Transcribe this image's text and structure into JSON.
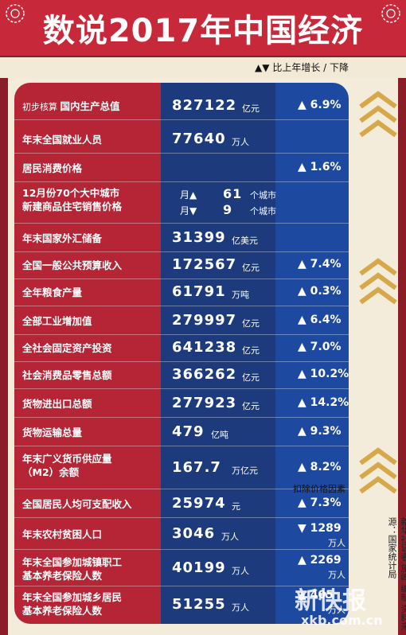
{
  "header": {
    "title": "数说2017年中国经济"
  },
  "legend": {
    "text": "▲▼ 比上年增长 / 下降"
  },
  "rows": [
    {
      "label_small": "初步核算",
      "label": "国内生产总值",
      "value": "827122",
      "unit": "亿元",
      "change": "▲ 6.9%"
    },
    {
      "label": "年末全国就业人员",
      "value": "77640",
      "unit": "万人",
      "change": ""
    },
    {
      "label": "居民消费价格",
      "value": "",
      "unit": "",
      "change": "▲ 1.6%"
    },
    {
      "label": "12月份70个大中城市\n新建商品住宅销售价格",
      "value": "",
      "unit": "",
      "change": ""
    },
    {
      "label": "年末国家外汇储备",
      "value": "31399",
      "unit": "亿美元",
      "change": ""
    },
    {
      "label": "全国一般公共预算收入",
      "value": "172567",
      "unit": "亿元",
      "change": "▲ 7.4%"
    },
    {
      "label": "全年粮食产量",
      "value": "61791",
      "unit": "万吨",
      "change": "▲ 0.3%"
    },
    {
      "label": "全部工业增加值",
      "value": "279997",
      "unit": "亿元",
      "change": "▲ 6.4%"
    },
    {
      "label": "全社会固定资产投资",
      "value": "641238",
      "unit": "亿元",
      "change": "▲ 7.0%"
    },
    {
      "label": "社会消费品零售总额",
      "value": "366262",
      "unit": "亿元",
      "change": "▲ 10.2%"
    },
    {
      "label": "货物进出口总额",
      "value": "277923",
      "unit": "亿元",
      "change": "▲ 14.2%"
    },
    {
      "label": "货物运输总量",
      "value": "479",
      "unit": "亿吨",
      "change": "▲ 9.3%"
    },
    {
      "label": "年末广义货币供应量\n（M2）余额",
      "value": "167.7",
      "unit": "万亿元",
      "change": "▲ 8.2%"
    },
    {
      "label": "全国居民人均可支配收入",
      "value": "25974",
      "unit": "元",
      "change": "▲ 7.3%",
      "change_note": "扣除价格因素"
    },
    {
      "label": "年末农村贫困人口",
      "value": "3046",
      "unit": "万人",
      "change": "▼ 1289",
      "change_unit": "万人"
    },
    {
      "label": "年末全国参加城镇职工\n基本养老保险人数",
      "value": "40199",
      "unit": "万人",
      "change": "▲ 2269",
      "change_unit": "万人"
    },
    {
      "label": "年末全国参加城乡居民\n基本养老保险人数",
      "value": "51255",
      "unit": "万人",
      "change": "▲ 405",
      "change_unit": "万人"
    }
  ],
  "city_prices": {
    "up_prefix": "月▲",
    "up_count": "61",
    "up_unit": "个城市",
    "down_prefix": "月▼",
    "down_count": "9",
    "down_unit": "个城市"
  },
  "credit": "新华社记者 施峰 编制  资料来源：国家统计局",
  "watermark": {
    "main": "新快报",
    "site": "xkb.com.cn"
  },
  "colors": {
    "red": "#b52535",
    "navy": "#1c3a7c",
    "blue": "#1d4aa0",
    "cream": "#f4ecda",
    "gold": "#d7a84a"
  }
}
